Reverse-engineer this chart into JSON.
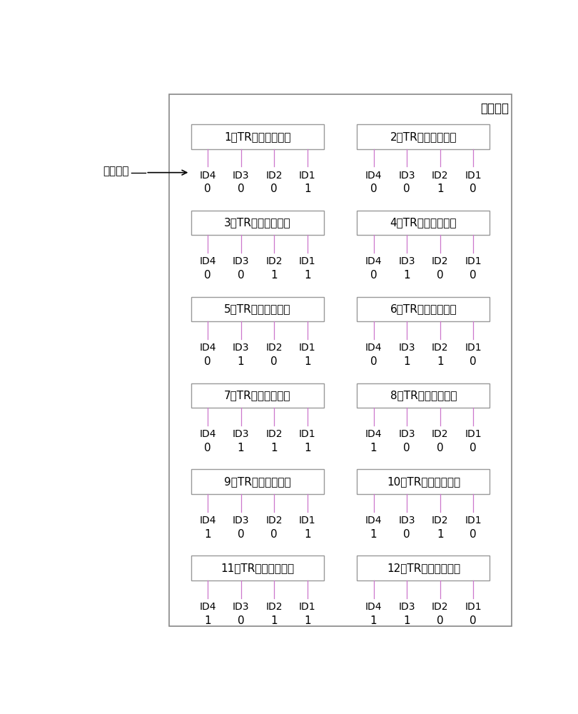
{
  "title_label": "天线阵面",
  "antenna_input_label": "天线输入",
  "boxes": [
    {
      "num": 1,
      "col": 0,
      "row": 0,
      "ids": [
        0,
        0,
        0,
        1
      ]
    },
    {
      "num": 2,
      "col": 1,
      "row": 0,
      "ids": [
        0,
        0,
        1,
        0
      ]
    },
    {
      "num": 3,
      "col": 0,
      "row": 1,
      "ids": [
        0,
        0,
        1,
        1
      ]
    },
    {
      "num": 4,
      "col": 1,
      "row": 1,
      "ids": [
        0,
        1,
        0,
        0
      ]
    },
    {
      "num": 5,
      "col": 0,
      "row": 2,
      "ids": [
        0,
        1,
        0,
        1
      ]
    },
    {
      "num": 6,
      "col": 1,
      "row": 2,
      "ids": [
        0,
        1,
        1,
        0
      ]
    },
    {
      "num": 7,
      "col": 0,
      "row": 3,
      "ids": [
        0,
        1,
        1,
        1
      ]
    },
    {
      "num": 8,
      "col": 1,
      "row": 3,
      "ids": [
        1,
        0,
        0,
        0
      ]
    },
    {
      "num": 9,
      "col": 0,
      "row": 4,
      "ids": [
        1,
        0,
        0,
        1
      ]
    },
    {
      "num": 10,
      "col": 1,
      "row": 4,
      "ids": [
        1,
        0,
        1,
        0
      ]
    },
    {
      "num": 11,
      "col": 0,
      "row": 5,
      "ids": [
        1,
        0,
        1,
        1
      ]
    },
    {
      "num": 12,
      "col": 1,
      "row": 5,
      "ids": [
        1,
        1,
        0,
        0
      ]
    }
  ],
  "id_labels": [
    "ID4",
    "ID3",
    "ID2",
    "ID1"
  ],
  "line_color": "#cc77cc",
  "box_border_color": "#999999",
  "outer_border_color": "#888888",
  "font_size_box": 11,
  "font_size_id": 10,
  "font_size_val": 11,
  "font_size_title": 12,
  "font_size_antenna": 11,
  "bg_color": "#ffffff"
}
